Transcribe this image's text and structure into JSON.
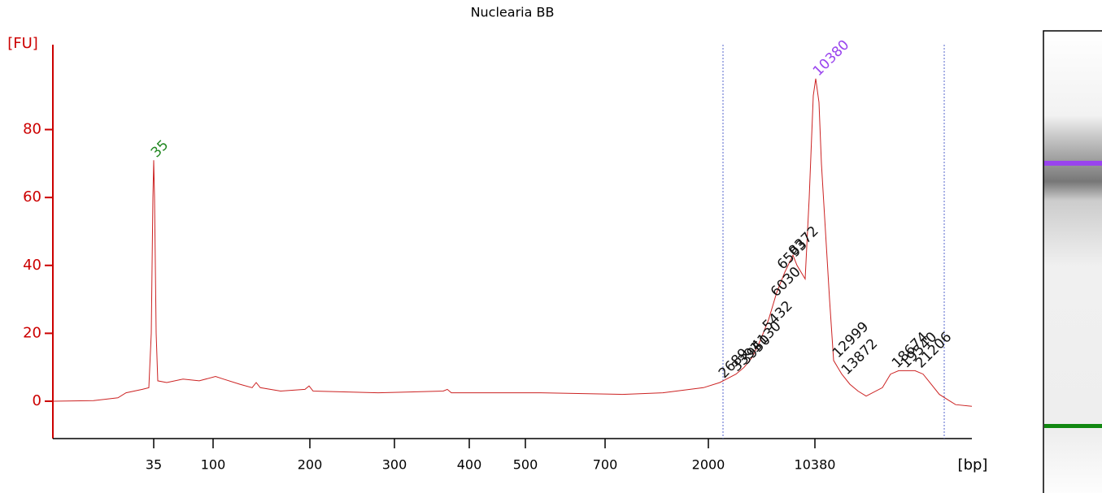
{
  "chart_data": {
    "type": "line",
    "title": "Nuclearia BB",
    "ylabel": "[FU]",
    "xlabel": "[bp]",
    "xlim": [
      0,
      113
    ],
    "ylim": [
      -11,
      105
    ],
    "yticks": [
      0,
      20,
      40,
      60,
      80
    ],
    "xticks": [
      {
        "value": 12.4,
        "label": "35"
      },
      {
        "value": 19.7,
        "label": "100"
      },
      {
        "value": 31.6,
        "label": "200"
      },
      {
        "value": 42,
        "label": "300"
      },
      {
        "value": 51.2,
        "label": "400"
      },
      {
        "value": 58.1,
        "label": "500"
      },
      {
        "value": 67.9,
        "label": "700"
      },
      {
        "value": 80.6,
        "label": "2000"
      },
      {
        "value": 93.7,
        "label": "10380"
      }
    ],
    "series": [
      {
        "color": "#cc2222",
        "x": [
          0,
          5,
          8,
          9,
          11,
          11.8,
          12.1,
          12.3,
          12.4,
          12.5,
          12.7,
          12.9,
          14,
          16,
          18,
          20,
          21,
          23,
          24.5,
          25,
          25.5,
          28,
          31,
          31.5,
          32,
          40,
          48,
          48.5,
          49,
          60,
          70,
          75,
          80,
          82,
          84,
          85,
          86,
          87,
          88,
          89,
          90,
          91,
          91.5,
          92,
          92.5,
          93,
          93.5,
          93.8,
          94.2,
          94.5,
          95,
          95.5,
          96,
          96.5,
          97,
          98,
          99,
          100,
          102,
          103,
          104,
          106,
          107,
          108,
          109,
          110,
          111,
          113
        ],
        "values": [
          0,
          0.2,
          1,
          2.5,
          3.5,
          4,
          20,
          60,
          71,
          60,
          20,
          6,
          5.5,
          6.5,
          6,
          7.3,
          6.5,
          5,
          4,
          5.5,
          4,
          3,
          3.5,
          4.5,
          3,
          2.5,
          3,
          3.5,
          2.5,
          2.5,
          2,
          2.5,
          4,
          5.5,
          8,
          10,
          13,
          18,
          24,
          32,
          38,
          43,
          40,
          38,
          36,
          60,
          90,
          95,
          88,
          70,
          50,
          30,
          12,
          10,
          8,
          5,
          3,
          1.5,
          4,
          8,
          9,
          9,
          8,
          5,
          2,
          0.5,
          -1,
          -1.5
        ]
      }
    ],
    "peaks": [
      {
        "label": "35",
        "x": 12.4,
        "y": 71,
        "color": "#228822"
      },
      {
        "label": "10380",
        "x": 93.8,
        "y": 95,
        "color": "#9944ee"
      },
      {
        "label": "2689",
        "x": 82.2,
        "y": 6,
        "color": "#111111"
      },
      {
        "label": "3391",
        "x": 83.8,
        "y": 8,
        "color": "#111111"
      },
      {
        "label": "3950",
        "x": 84.9,
        "y": 10,
        "color": "#111111"
      },
      {
        "label": "4130",
        "x": 86.2,
        "y": 14,
        "color": "#111111"
      },
      {
        "label": "5432",
        "x": 87.6,
        "y": 20,
        "color": "#111111"
      },
      {
        "label": "6030",
        "x": 88.6,
        "y": 30,
        "color": "#111111"
      },
      {
        "label": "6593",
        "x": 89.4,
        "y": 38,
        "color": "#111111"
      },
      {
        "label": "8372",
        "x": 90.8,
        "y": 42,
        "color": "#111111"
      },
      {
        "label": "12999",
        "x": 96.2,
        "y": 12,
        "color": "#111111"
      },
      {
        "label": "13872",
        "x": 97.3,
        "y": 7,
        "color": "#111111"
      },
      {
        "label": "18674",
        "x": 103.5,
        "y": 9,
        "color": "#111111"
      },
      {
        "label": "19540",
        "x": 104.6,
        "y": 9,
        "color": "#111111"
      },
      {
        "label": "21206",
        "x": 106.4,
        "y": 9,
        "color": "#111111"
      }
    ]
  }
}
